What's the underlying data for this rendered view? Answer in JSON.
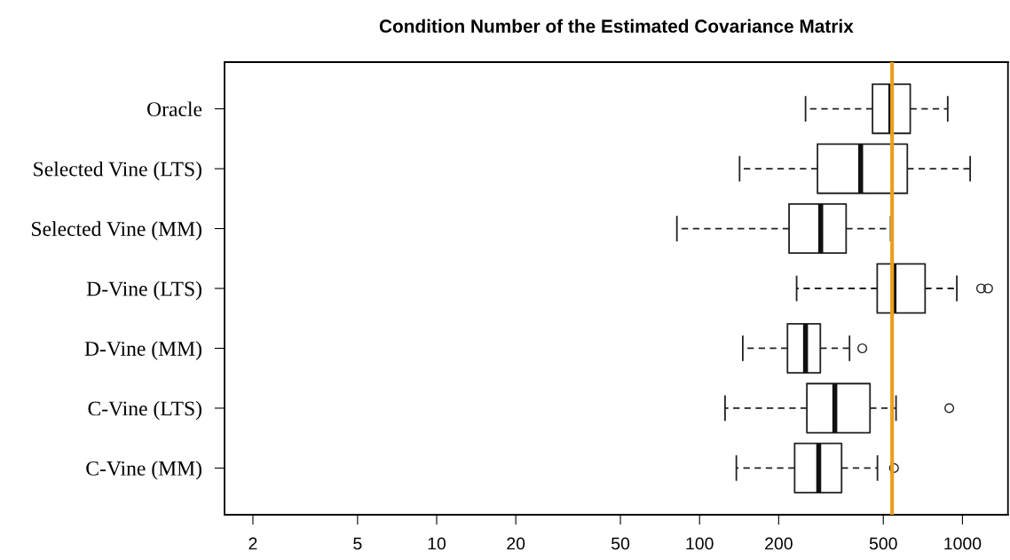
{
  "chart_data": {
    "type": "box",
    "orientation": "horizontal",
    "title": "Condition Number of the Estimated Covariance Matrix",
    "categories": [
      "Oracle",
      "Selected Vine (LTS)",
      "Selected Vine (MM)",
      "D-Vine (LTS)",
      "D-Vine (MM)",
      "C-Vine (LTS)",
      "C-Vine (MM)"
    ],
    "boxes": [
      {
        "low": 253,
        "q1": 455,
        "median": 534,
        "q3": 633,
        "high": 879
      },
      {
        "low": 142,
        "q1": 281,
        "median": 410,
        "q3": 617,
        "high": 1070
      },
      {
        "low": 82,
        "q1": 219,
        "median": 289,
        "q3": 361,
        "high": 533
      },
      {
        "low": 234,
        "q1": 474,
        "median": 549,
        "q3": 721,
        "high": 952,
        "outliers": [
          1178,
          1252
        ]
      },
      {
        "low": 146,
        "q1": 216,
        "median": 253,
        "q3": 288,
        "high": 372,
        "outliers": [
          416
        ]
      },
      {
        "low": 125,
        "q1": 256,
        "median": 327,
        "q3": 445,
        "high": 559,
        "outliers": [
          891
        ]
      },
      {
        "low": 138,
        "q1": 230,
        "median": 284,
        "q3": 347,
        "high": 475,
        "outliers": [
          549
        ]
      }
    ],
    "log": "x",
    "xlim": [
      1.56,
      1490
    ],
    "xticks": [
      2,
      5,
      10,
      20,
      50,
      100,
      200,
      500,
      1000
    ],
    "grid": false,
    "ref_lines": [
      {
        "axis": "x",
        "value": 540,
        "color": "#e8a020"
      }
    ]
  }
}
